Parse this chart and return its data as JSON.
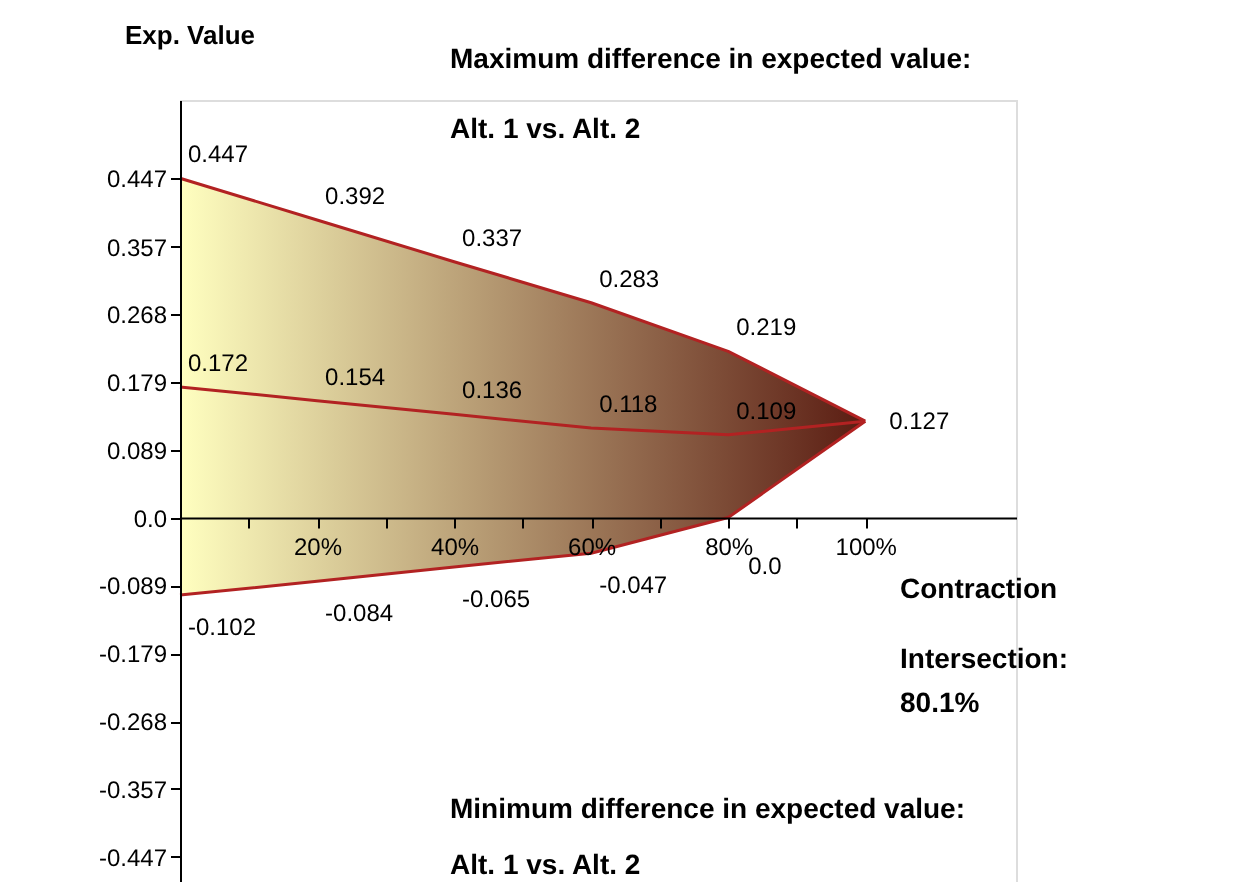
{
  "chart_data": {
    "type": "line",
    "xlabel": "Contraction",
    "ylabel": "Exp. Value",
    "x": [
      0,
      20,
      40,
      60,
      80,
      100
    ],
    "colors": [
      "#ffffc0",
      "#5a1c12"
    ],
    "series": [
      {
        "color": "#b22222",
        "values": [
          0.172,
          0.154,
          0.136,
          0.118,
          0.109,
          0.127
        ],
        "lower": [
          -0.102,
          -0.084,
          -0.065,
          -0.047,
          0.0,
          0.127
        ],
        "upper": [
          0.447,
          0.392,
          0.337,
          0.283,
          0.219,
          0.127
        ],
        "value_labels": [
          "0.172",
          "0.154",
          "0.136",
          "0.118",
          "0.109",
          "0.127"
        ]
      }
    ],
    "xlim": [
      0,
      122
    ],
    "ylim": [
      -0.48,
      0.55
    ],
    "xticks": [
      {
        "value": 10,
        "label": null
      },
      {
        "value": 20,
        "label": "20%"
      },
      {
        "value": 30,
        "label": null
      },
      {
        "value": 40,
        "label": "40%"
      },
      {
        "value": 50,
        "label": null
      },
      {
        "value": 60,
        "label": "60%"
      },
      {
        "value": 70,
        "label": null
      },
      {
        "value": 80,
        "label": "80%"
      },
      {
        "value": 90,
        "label": null
      },
      {
        "value": 100,
        "label": "100%"
      }
    ],
    "yticks": [
      0.447,
      0.357,
      0.268,
      0.179,
      0.089,
      {
        "value": 0,
        "label": "0.0"
      },
      -0.089,
      -0.179,
      -0.268,
      -0.357,
      -0.447
    ],
    "grid": false,
    "annotations": [
      "Maximum difference in expected value:",
      "Alt. 1 vs. Alt. 2",
      "Intersection:",
      "80.1%",
      "Minimum difference in expected value:",
      "Alt. 1 vs. Alt. 2",
      {
        "text": "0.447",
        "x": 0,
        "y": 0.447
      },
      {
        "text": "0.392",
        "x": 20,
        "y": 0.392
      },
      {
        "text": "0.337",
        "x": 40,
        "y": 0.337
      },
      {
        "text": "0.283",
        "x": 60,
        "y": 0.283
      },
      {
        "text": "0.219",
        "x": 80,
        "y": 0.219
      },
      {
        "text": "-0.102",
        "x": 0,
        "y": -0.102
      },
      {
        "text": "-0.084",
        "x": 20,
        "y": -0.084
      },
      {
        "text": "-0.065",
        "x": 40,
        "y": -0.065
      },
      {
        "text": "-0.047",
        "x": 60,
        "y": -0.047
      },
      {
        "text": "0.0",
        "x": 80,
        "y": 0.0
      }
    ]
  }
}
